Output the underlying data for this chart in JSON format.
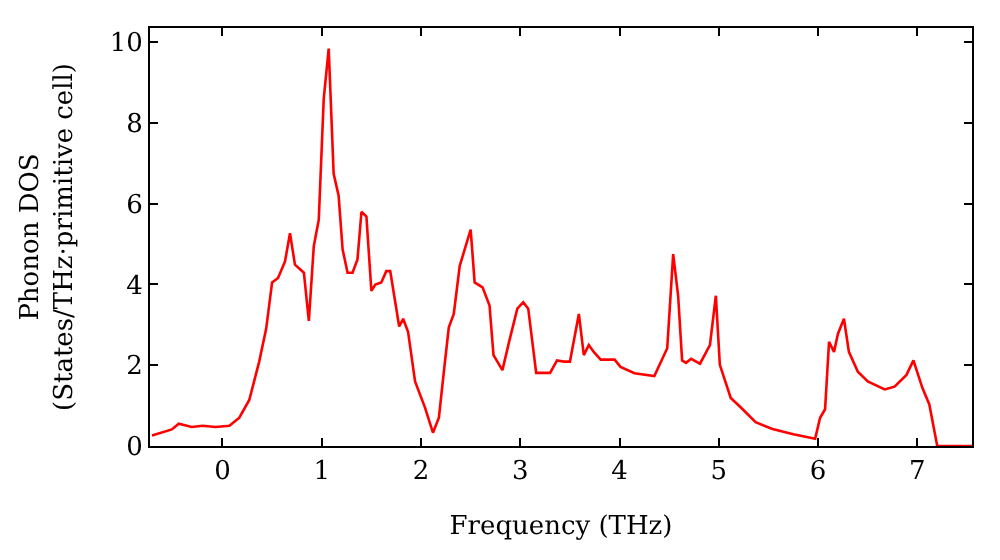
{
  "chart_data": {
    "type": "line",
    "xlabel": "Frequency (THz)",
    "ylabel": "Phonon DOS\n(States/THz·primitive cell)",
    "xlim": [
      -0.73,
      7.55
    ],
    "ylim": [
      0,
      10.35
    ],
    "xticks": [
      0,
      1,
      2,
      3,
      4,
      5,
      6,
      7
    ],
    "yticks": [
      0,
      2,
      4,
      6,
      8,
      10
    ],
    "marker": "none",
    "line_style": "solid",
    "x": [
      -0.71,
      -0.51,
      -0.44,
      -0.31,
      -0.2,
      -0.07,
      0.07,
      0.17,
      0.27,
      0.37,
      0.44,
      0.5,
      0.56,
      0.63,
      0.68,
      0.73,
      0.82,
      0.87,
      0.92,
      0.97,
      1.02,
      1.07,
      1.12,
      1.17,
      1.21,
      1.26,
      1.31,
      1.36,
      1.4,
      1.45,
      1.5,
      1.54,
      1.6,
      1.65,
      1.69,
      1.73,
      1.78,
      1.82,
      1.87,
      1.94,
      2.04,
      2.12,
      2.18,
      2.23,
      2.28,
      2.33,
      2.39,
      2.5,
      2.54,
      2.62,
      2.69,
      2.73,
      2.82,
      2.89,
      2.97,
      3.03,
      3.08,
      3.16,
      3.3,
      3.37,
      3.44,
      3.5,
      3.59,
      3.64,
      3.69,
      3.74,
      3.81,
      3.95,
      4.01,
      4.15,
      4.35,
      4.48,
      4.54,
      4.59,
      4.63,
      4.67,
      4.72,
      4.81,
      4.91,
      4.97,
      5.01,
      5.12,
      5.24,
      5.37,
      5.54,
      5.75,
      5.97,
      6.02,
      6.07,
      6.11,
      6.16,
      6.2,
      6.26,
      6.31,
      6.4,
      6.5,
      6.67,
      6.77,
      6.89,
      6.96,
      7.05,
      7.12,
      7.2,
      7.55
    ],
    "series": [
      {
        "color": "#ff0000",
        "values": [
          0.26,
          0.41,
          0.55,
          0.47,
          0.5,
          0.47,
          0.5,
          0.7,
          1.14,
          2.09,
          2.9,
          4.05,
          4.16,
          4.57,
          5.27,
          4.49,
          4.29,
          3.1,
          4.95,
          5.6,
          8.6,
          9.84,
          6.74,
          6.2,
          4.87,
          4.29,
          4.29,
          4.62,
          5.8,
          5.68,
          3.84,
          4.0,
          4.05,
          4.33,
          4.33,
          3.72,
          2.96,
          3.15,
          2.82,
          1.6,
          0.95,
          0.33,
          0.7,
          1.84,
          2.94,
          3.27,
          4.46,
          5.36,
          4.05,
          3.93,
          3.48,
          2.25,
          1.88,
          2.61,
          3.4,
          3.56,
          3.4,
          1.81,
          1.81,
          2.12,
          2.09,
          2.09,
          3.27,
          2.25,
          2.5,
          2.33,
          2.14,
          2.14,
          1.96,
          1.8,
          1.73,
          2.42,
          4.75,
          3.72,
          2.12,
          2.06,
          2.16,
          2.04,
          2.5,
          3.72,
          2.01,
          1.19,
          0.91,
          0.59,
          0.42,
          0.29,
          0.18,
          0.7,
          0.91,
          2.58,
          2.33,
          2.78,
          3.15,
          2.33,
          1.84,
          1.6,
          1.4,
          1.47,
          1.76,
          2.12,
          1.44,
          1.03,
          0,
          0
        ]
      }
    ]
  }
}
